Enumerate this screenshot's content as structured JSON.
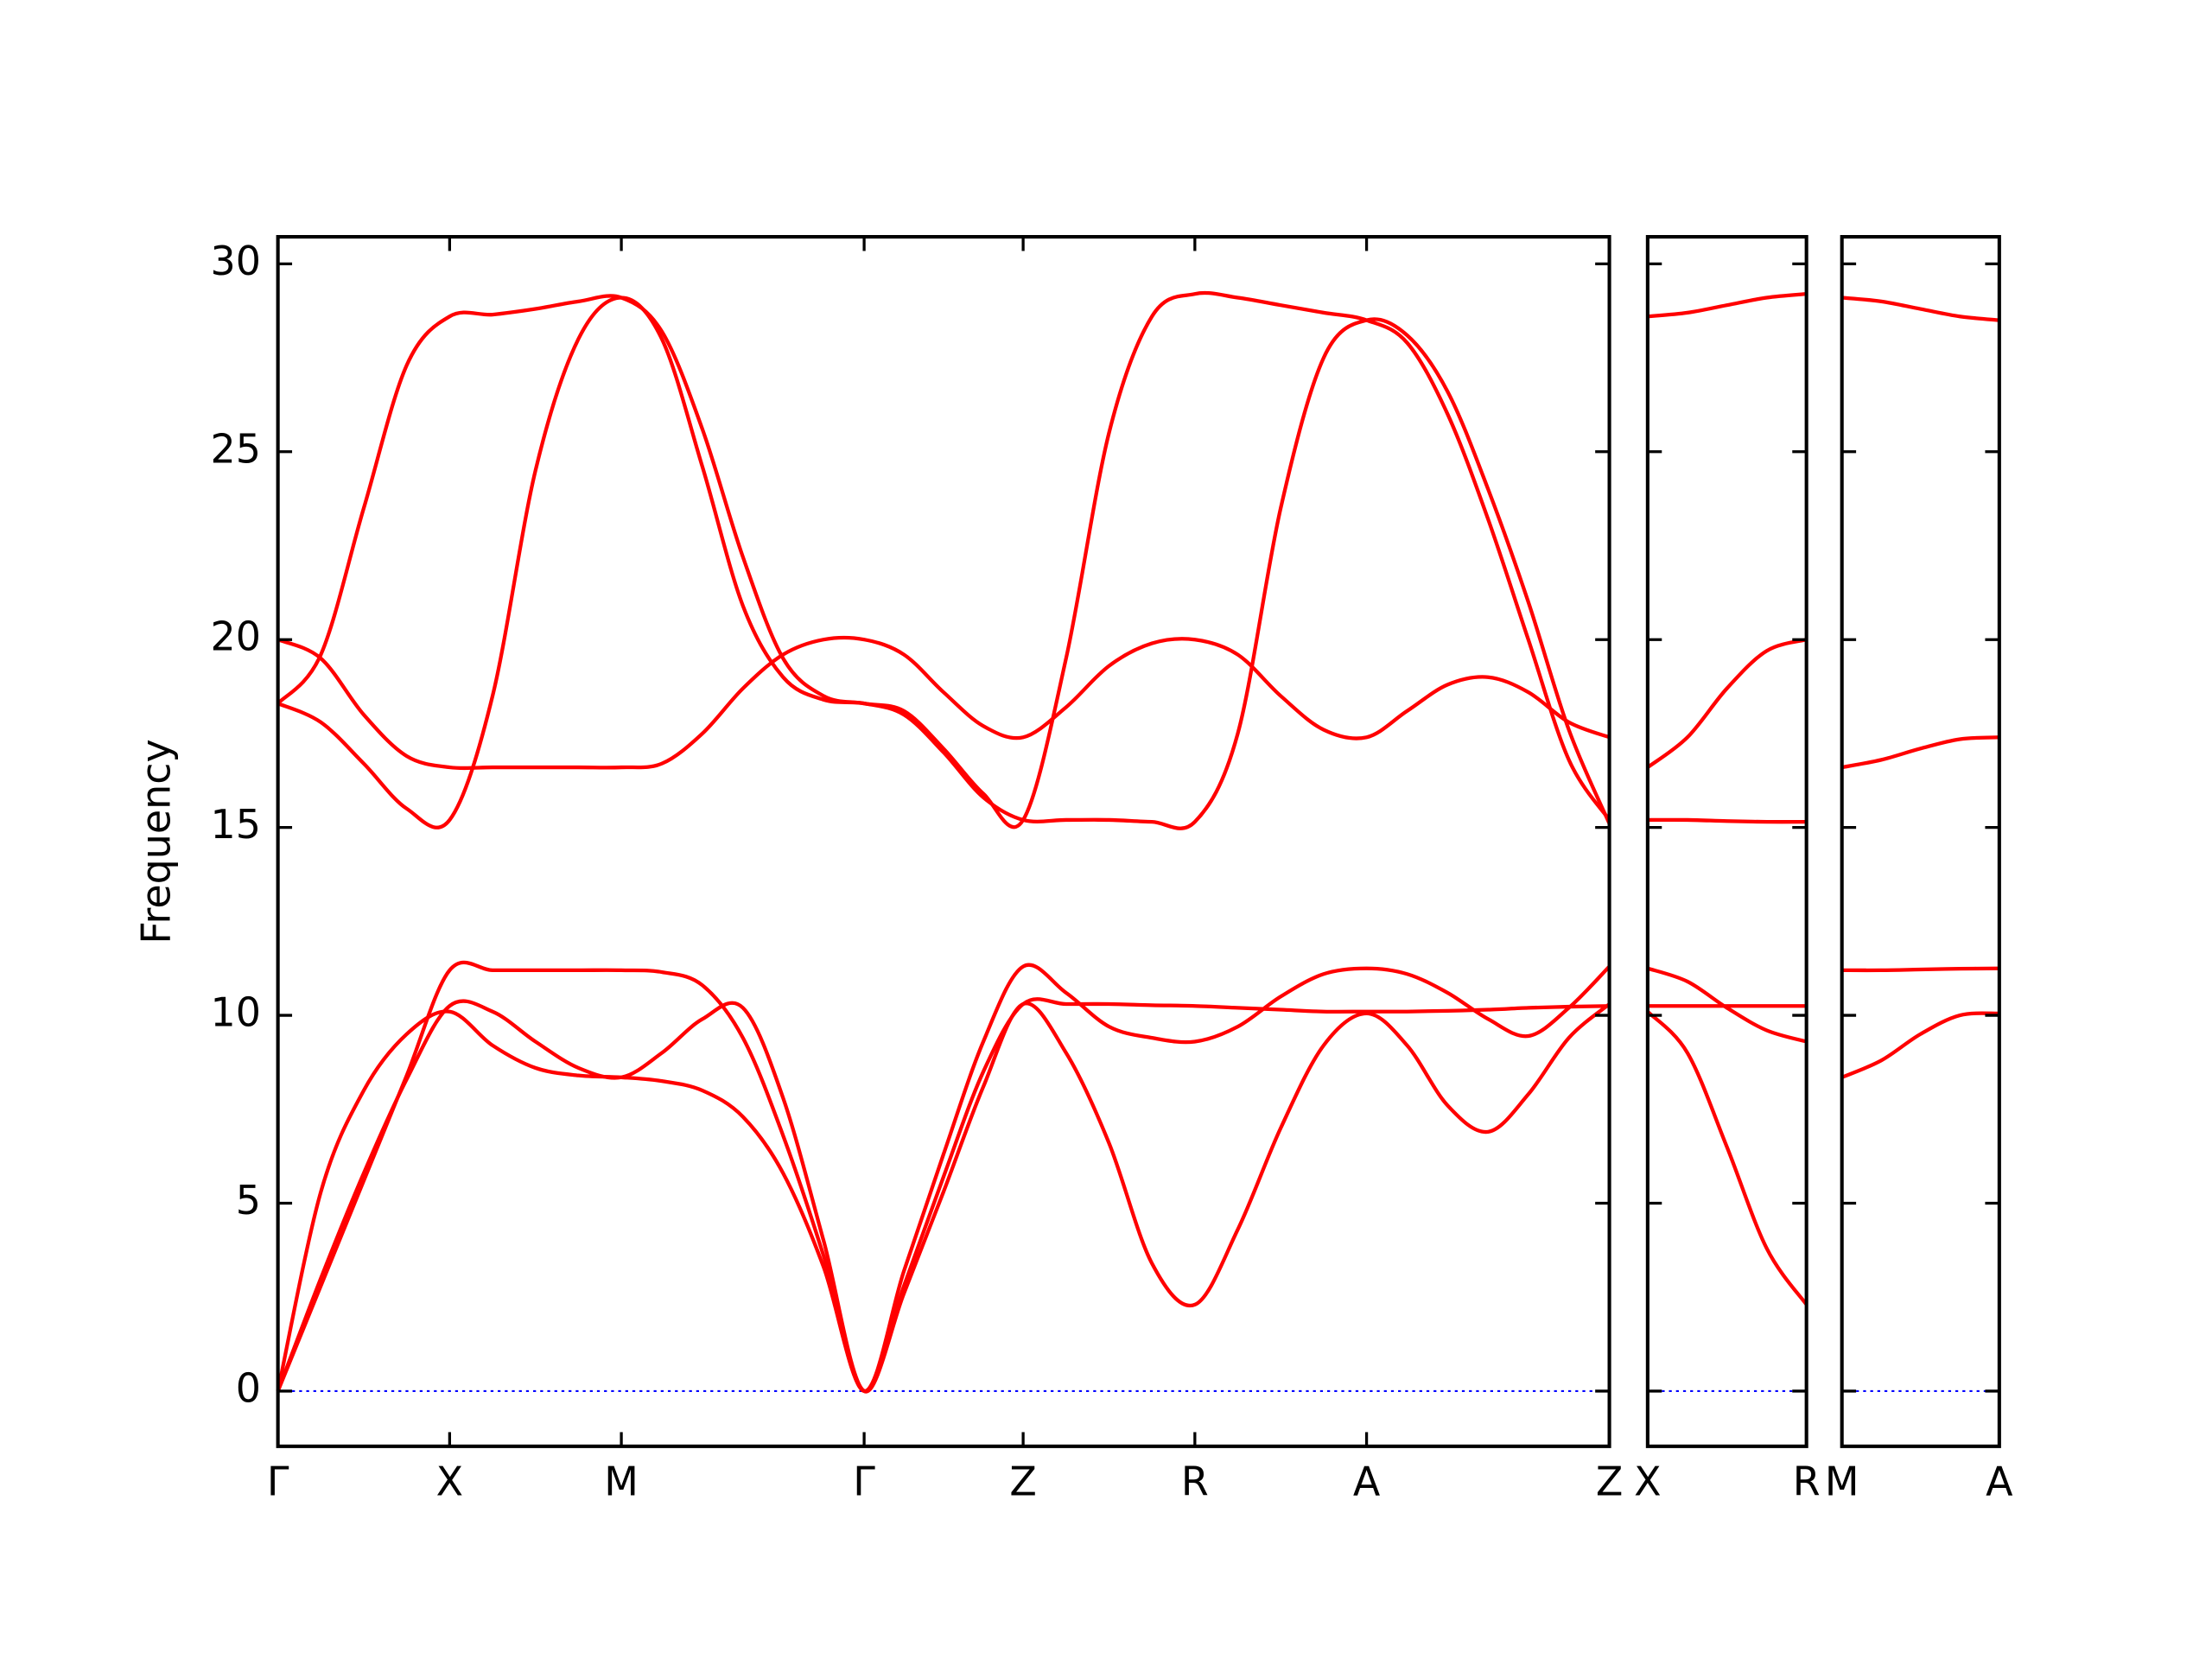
{
  "chart_data": [
    {
      "type": "line",
      "ylabel": "Frequency",
      "color": "#ff0000",
      "xlim": [
        0,
        3.877
      ],
      "ylim": [
        -1.47,
        30.72
      ],
      "yticks": [
        0,
        5,
        10,
        15,
        20,
        25,
        30
      ],
      "xticks": [
        {
          "value": 0,
          "label": "Γ"
        },
        {
          "value": 0.5,
          "label": "X"
        },
        {
          "value": 1.0,
          "label": "M"
        },
        {
          "value": 1.707,
          "label": "Γ"
        },
        {
          "value": 2.17,
          "label": "Z"
        },
        {
          "value": 2.67,
          "label": "R"
        },
        {
          "value": 3.17,
          "label": "A"
        },
        {
          "value": 3.877,
          "label": "Z"
        }
      ],
      "hline": {
        "y": 0,
        "color": "#0000ff",
        "style": "dotted"
      },
      "x": [
        0,
        0.125,
        0.25,
        0.375,
        0.5,
        0.625,
        0.75,
        0.875,
        1.0,
        1.118,
        1.236,
        1.354,
        1.471,
        1.589,
        1.707,
        1.823,
        1.938,
        2.054,
        2.17,
        2.295,
        2.42,
        2.545,
        2.67,
        2.795,
        2.92,
        3.045,
        3.17,
        3.288,
        3.406,
        3.524,
        3.641,
        3.759,
        3.877
      ],
      "series": [
        {
          "values": [
            0,
            5.3,
            8.0,
            9.5,
            10.1,
            9.2,
            8.6,
            8.4,
            8.35,
            8.25,
            8.0,
            7.3,
            5.8,
            3.3,
            0,
            2.6,
            5.3,
            8.1,
            10.3,
            9.0,
            6.6,
            3.4,
            2.3,
            4.3,
            7.0,
            9.2,
            10.05,
            9.2,
            7.6,
            6.9,
            7.9,
            9.4,
            10.3
          ]
        },
        {
          "values": [
            0,
            3.0,
            5.8,
            8.3,
            10.25,
            10.1,
            9.3,
            8.6,
            8.35,
            9.0,
            9.9,
            10.2,
            7.8,
            4.0,
            0,
            2.8,
            5.7,
            8.5,
            10.3,
            10.3,
            10.3,
            10.27,
            10.25,
            10.2,
            10.15,
            10.1,
            10.1,
            10.1,
            10.12,
            10.15,
            10.2,
            10.23,
            10.25
          ]
        },
        {
          "values": [
            0,
            2.8,
            5.6,
            8.4,
            11.2,
            11.2,
            11.2,
            11.2,
            11.2,
            11.15,
            10.8,
            9.4,
            6.8,
            3.6,
            0,
            3.2,
            6.3,
            9.3,
            11.3,
            10.6,
            9.7,
            9.4,
            9.3,
            9.7,
            10.5,
            11.1,
            11.25,
            11.1,
            10.6,
            9.9,
            9.45,
            10.2,
            11.3
          ]
        },
        {
          "values": [
            18.3,
            19.6,
            23.5,
            27.3,
            28.6,
            28.65,
            28.8,
            29.0,
            29.1,
            28.2,
            25.6,
            22.2,
            19.5,
            18.5,
            18.3,
            18.1,
            17.1,
            15.9,
            15.2,
            19.5,
            25.5,
            28.6,
            29.2,
            29.1,
            28.9,
            28.7,
            28.5,
            27.9,
            26.0,
            23.2,
            20.0,
            16.8,
            15.2
          ]
        },
        {
          "values": [
            18.3,
            17.8,
            16.7,
            15.5,
            15.2,
            18.5,
            24.5,
            28.0,
            29.1,
            28.0,
            24.6,
            20.9,
            19.0,
            18.4,
            18.3,
            18.0,
            17.0,
            15.8,
            15.2,
            15.2,
            15.2,
            15.15,
            15.15,
            17.5,
            23.5,
            27.5,
            28.5,
            28.1,
            26.6,
            24.0,
            21.0,
            17.6,
            15.1
          ]
        },
        {
          "values": [
            20.0,
            19.5,
            18.0,
            16.9,
            16.6,
            16.6,
            16.6,
            16.6,
            16.6,
            16.7,
            17.5,
            18.7,
            19.6,
            20.0,
            20.0,
            19.6,
            18.6,
            17.7,
            17.4,
            18.2,
            19.3,
            19.9,
            20.0,
            19.6,
            18.5,
            17.6,
            17.4,
            18.1,
            18.8,
            19.0,
            18.6,
            17.8,
            17.4
          ]
        }
      ]
    },
    {
      "type": "line",
      "color": "#ff0000",
      "xlim": [
        0,
        0.463
      ],
      "ylim": [
        -1.47,
        30.72
      ],
      "yticks": [
        0,
        5,
        10,
        15,
        20,
        25,
        30
      ],
      "xticks": [
        {
          "value": 0,
          "label": "X"
        },
        {
          "value": 0.463,
          "label": "R"
        }
      ],
      "hline": {
        "y": 0,
        "color": "#0000ff",
        "style": "dotted"
      },
      "x": [
        0,
        0.116,
        0.231,
        0.347,
        0.463
      ],
      "series": [
        {
          "values": [
            28.6,
            28.7,
            28.9,
            29.1,
            29.2
          ]
        },
        {
          "values": [
            16.6,
            17.4,
            18.7,
            19.7,
            20.0
          ]
        },
        {
          "values": [
            15.2,
            15.2,
            15.17,
            15.15,
            15.15
          ]
        },
        {
          "values": [
            11.25,
            10.9,
            10.2,
            9.6,
            9.3
          ]
        },
        {
          "values": [
            10.25,
            10.25,
            10.25,
            10.25,
            10.25
          ]
        },
        {
          "values": [
            10.1,
            9.0,
            6.5,
            3.8,
            2.3
          ]
        }
      ]
    },
    {
      "type": "line",
      "color": "#ff0000",
      "xlim": [
        0,
        0.463
      ],
      "ylim": [
        -1.47,
        30.72
      ],
      "yticks": [
        0,
        5,
        10,
        15,
        20,
        25,
        30
      ],
      "xticks": [
        {
          "value": 0,
          "label": "M"
        },
        {
          "value": 0.463,
          "label": "A"
        }
      ],
      "hline": {
        "y": 0,
        "color": "#0000ff",
        "style": "dotted"
      },
      "x": [
        0,
        0.116,
        0.231,
        0.347,
        0.463
      ],
      "series": [
        {
          "values": [
            29.1,
            29.0,
            28.8,
            28.6,
            28.5
          ]
        },
        {
          "values": [
            16.6,
            16.8,
            17.1,
            17.35,
            17.4
          ]
        },
        {
          "values": [
            11.2,
            11.2,
            11.22,
            11.24,
            11.25
          ]
        },
        {
          "values": [
            8.35,
            8.8,
            9.5,
            10.0,
            10.05
          ]
        }
      ]
    }
  ]
}
